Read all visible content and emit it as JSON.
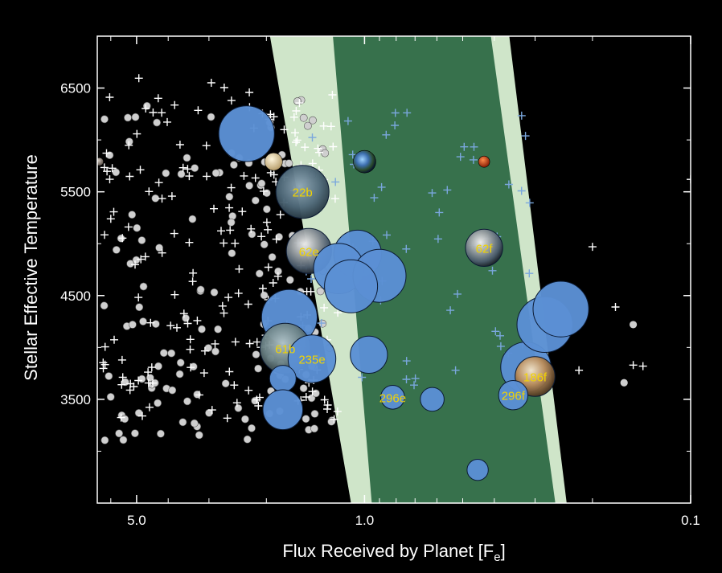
{
  "chart_data": {
    "type": "scatter",
    "title": "",
    "xlabel": "Flux Received by Planet [F",
    "xlabel_sub": "e",
    "xlabel_end": "]",
    "ylabel": "Stellar Effective Temperature",
    "x_scale": "log",
    "x_reversed": true,
    "xlim": [
      6.6,
      0.1
    ],
    "ylim": [
      2500,
      7000
    ],
    "x_ticks": [
      {
        "value": 5.0,
        "label": "5.0"
      },
      {
        "value": 1.0,
        "label": "1.0"
      },
      {
        "value": 0.1,
        "label": "0.1"
      }
    ],
    "y_ticks": [
      {
        "value": 6500,
        "label": "6500"
      },
      {
        "value": 5500,
        "label": "5500"
      },
      {
        "value": 4500,
        "label": "4500"
      },
      {
        "value": 3500,
        "label": "3500"
      }
    ],
    "zones": {
      "optimistic_color": "#cfe5c9",
      "conservative_color": "#37714c",
      "optimistic_inner": [
        [
          1.95,
          7000
        ],
        [
          1.1,
          2500
        ]
      ],
      "conservative_inner": [
        [
          1.25,
          7000
        ],
        [
          0.95,
          2500
        ]
      ],
      "conservative_outer": [
        [
          0.41,
          7000
        ],
        [
          0.26,
          2500
        ]
      ],
      "optimistic_outer": [
        [
          0.36,
          7000
        ],
        [
          0.24,
          2500
        ]
      ]
    },
    "colors": {
      "bubble": "#5b8fd4",
      "bubble_edge": "#0b1a33",
      "kepler_candidate_cross": "#7aa7dd",
      "other_cross": "#ffffff",
      "known_planet_dot": "#cfcfcf",
      "label": "#f2d400"
    },
    "habitable_candidates": [
      {
        "flux": 1.55,
        "teff": 5500,
        "size": 1.0,
        "name": "22b"
      },
      {
        "flux": 1.48,
        "teff": 4930,
        "size": 0.85,
        "name": "62e"
      },
      {
        "flux": 1.05,
        "teff": 4900,
        "size": 0.9,
        "name": ""
      },
      {
        "flux": 1.2,
        "teff": 4760,
        "size": 0.95,
        "name": ""
      },
      {
        "flux": 0.9,
        "teff": 4690,
        "size": 1.0,
        "name": ""
      },
      {
        "flux": 1.1,
        "teff": 4590,
        "size": 1.0,
        "name": ""
      },
      {
        "flux": 1.7,
        "teff": 4290,
        "size": 1.05,
        "name": ""
      },
      {
        "flux": 1.75,
        "teff": 3990,
        "size": 0.95,
        "name": "61b"
      },
      {
        "flux": 1.45,
        "teff": 3890,
        "size": 0.9,
        "name": "235e"
      },
      {
        "flux": 0.97,
        "teff": 3930,
        "size": 0.7,
        "name": ""
      },
      {
        "flux": 1.78,
        "teff": 3700,
        "size": 0.5,
        "name": ""
      },
      {
        "flux": 1.78,
        "teff": 3400,
        "size": 0.75,
        "name": ""
      },
      {
        "flux": 0.82,
        "teff": 3520,
        "size": 0.45,
        "name": "296e"
      },
      {
        "flux": 0.62,
        "teff": 3500,
        "size": 0.45,
        "name": ""
      },
      {
        "flux": 0.45,
        "teff": 2820,
        "size": 0.4,
        "name": ""
      },
      {
        "flux": 0.43,
        "teff": 4960,
        "size": 0.7,
        "name": "62f"
      },
      {
        "flux": 0.32,
        "teff": 3810,
        "size": 0.95,
        "name": ""
      },
      {
        "flux": 0.3,
        "teff": 3720,
        "size": 0.75,
        "name": "186f"
      },
      {
        "flux": 0.35,
        "teff": 3540,
        "size": 0.55,
        "name": "296f"
      },
      {
        "flux": 0.28,
        "teff": 4220,
        "size": 1.05,
        "name": ""
      },
      {
        "flux": 0.25,
        "teff": 4370,
        "size": 1.05,
        "name": ""
      },
      {
        "flux": 2.3,
        "teff": 6060,
        "size": 1.05,
        "name": ""
      }
    ],
    "solar_system": [
      {
        "flux": 1.0,
        "teff": 5790,
        "name": "Earth"
      },
      {
        "flux": 0.43,
        "teff": 5790,
        "name": "Mars"
      },
      {
        "flux": 1.9,
        "teff": 5790,
        "name": "Venus"
      },
      {
        "flux": 6.5,
        "teff": 5790,
        "name": "Mercury"
      }
    ]
  }
}
